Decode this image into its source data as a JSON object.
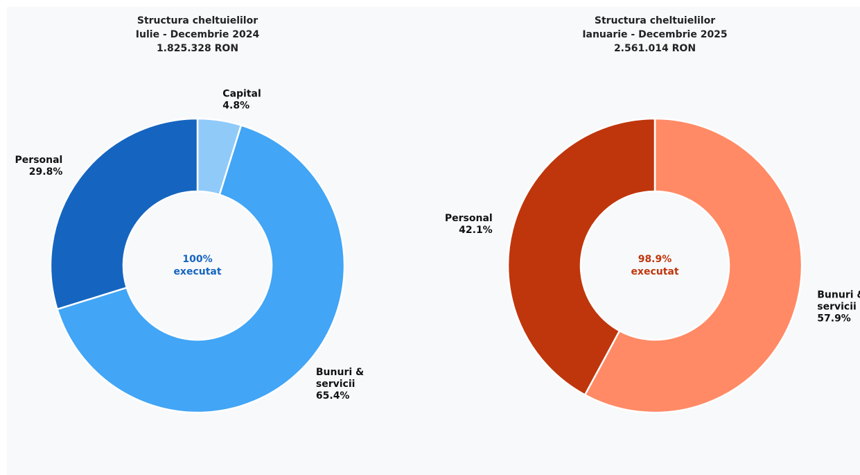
{
  "chart_data": [
    {
      "type": "donut",
      "title": "Structura cheltuielilor",
      "subtitle": "Iulie - Decembrie 2024",
      "total": "1.825.328 RON",
      "categories": [
        "Capital",
        "Bunuri & servicii",
        "Personal"
      ],
      "values": [
        4.8,
        65.4,
        29.8
      ],
      "value_labels": [
        "4.8%",
        "65.4%",
        "29.8%"
      ],
      "colors": [
        "#90caf9",
        "#42a5f5",
        "#1565c0"
      ],
      "center_text": [
        "100%",
        "executat"
      ],
      "center_color": "#1565c0"
    },
    {
      "type": "donut",
      "title": "Structura cheltuielilor",
      "subtitle": "Ianuarie - Decembrie 2025",
      "total": "2.561.014 RON",
      "categories": [
        "Bunuri & servicii",
        "Personal"
      ],
      "values": [
        57.9,
        42.1
      ],
      "value_labels": [
        "57.9%",
        "42.1%"
      ],
      "colors": [
        "#ff8a65",
        "#bf360c"
      ],
      "center_text": [
        "98.9%",
        "executat"
      ],
      "center_color": "#bf360c"
    }
  ]
}
